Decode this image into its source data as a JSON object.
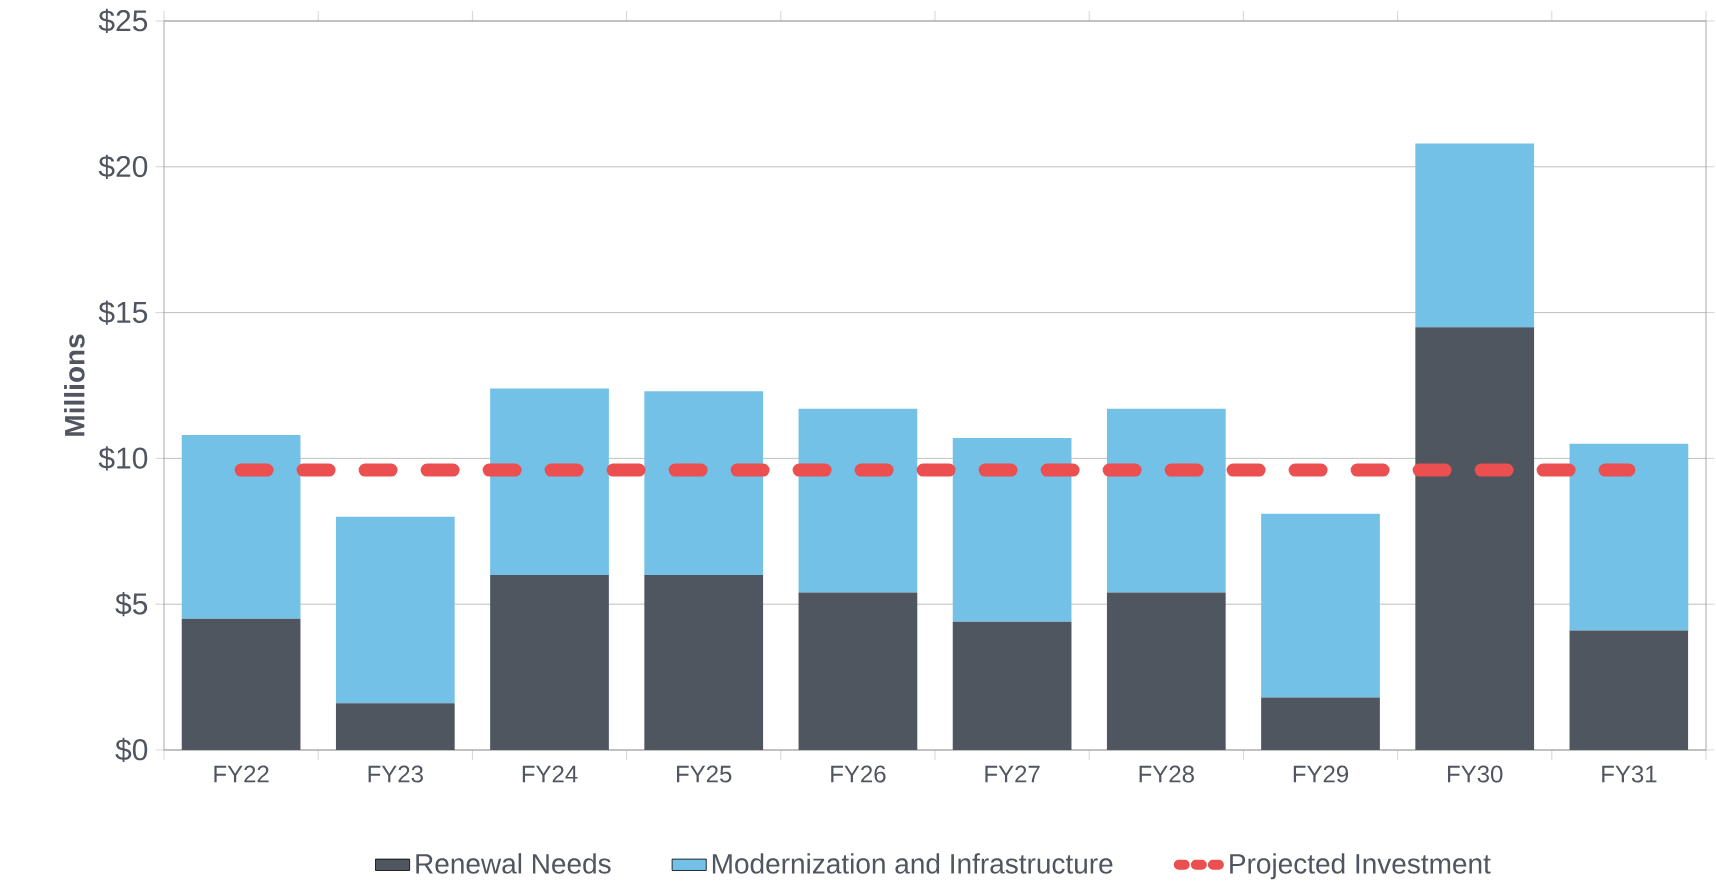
{
  "chart_data": {
    "type": "bar",
    "stacked": true,
    "ylabel": "Millions",
    "categories": [
      "FY22",
      "FY23",
      "FY24",
      "FY25",
      "FY26",
      "FY27",
      "FY28",
      "FY29",
      "FY30",
      "FY31"
    ],
    "series": [
      {
        "name": "Renewal Needs",
        "color": "#4f5660",
        "values": [
          4.5,
          1.6,
          6.0,
          6.0,
          5.4,
          4.4,
          5.4,
          1.8,
          14.5,
          4.1
        ]
      },
      {
        "name": "Modernization and Infrastructure",
        "color": "#73c1e7",
        "values": [
          6.3,
          6.4,
          6.4,
          6.3,
          6.3,
          6.3,
          6.3,
          6.3,
          6.3,
          6.4
        ]
      },
      {
        "name": "Projected Investment",
        "type": "line",
        "line_style": "dashed",
        "color": "#eb4f4f",
        "values": [
          9.6,
          9.6,
          9.6,
          9.6,
          9.6,
          9.6,
          9.6,
          9.6,
          9.6,
          9.6
        ]
      }
    ],
    "ylim": [
      0,
      25
    ],
    "yticks": [
      {
        "value": 0,
        "label": "$0"
      },
      {
        "value": 5,
        "label": "$5"
      },
      {
        "value": 10,
        "label": "$10"
      },
      {
        "value": 15,
        "label": "$15"
      },
      {
        "value": 20,
        "label": "$20"
      },
      {
        "value": 25,
        "label": "$25"
      }
    ],
    "grid": "y",
    "legend": "bottom"
  }
}
